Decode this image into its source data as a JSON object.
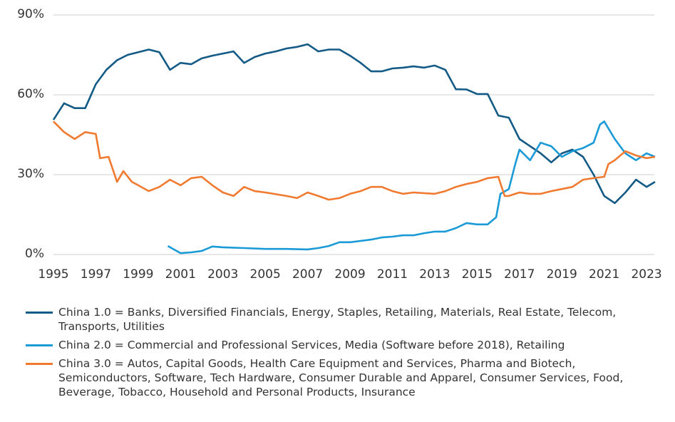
{
  "chart_data": {
    "type": "line",
    "xlim": [
      1995,
      2023.4
    ],
    "xticks": [
      1995,
      1997,
      1999,
      2001,
      2003,
      2005,
      2007,
      2009,
      2011,
      2013,
      2015,
      2017,
      2019,
      2021,
      2023
    ],
    "ylim": [
      0,
      90
    ],
    "yticks": [
      {
        "value": 0,
        "label": "0%"
      },
      {
        "value": 30,
        "label": "30%"
      },
      {
        "value": 60,
        "label": "60%"
      },
      {
        "value": 90,
        "label": "90%"
      }
    ],
    "grid": true,
    "legend": "bottom",
    "series": [
      {
        "name": "China 1.0 = Banks, Diversified Financials, Energy, Staples, Retailing, Materials, Real Estate, Telecom, Transports, Utilities",
        "color": "#135a86",
        "x": [
          1995,
          1995.5,
          1996,
          1996.5,
          1997,
          1997.5,
          1998,
          1998.5,
          1999,
          1999.5,
          2000,
          2000.5,
          2001,
          2001.5,
          2002,
          2002.5,
          2003,
          2003.5,
          2004,
          2004.5,
          2005,
          2005.5,
          2006,
          2006.5,
          2007,
          2007.5,
          2008,
          2008.5,
          2009,
          2009.5,
          2010,
          2010.5,
          2011,
          2011.5,
          2012,
          2012.5,
          2013,
          2013.5,
          2014,
          2014.5,
          2015,
          2015.5,
          2016,
          2016.5,
          2017,
          2017.5,
          2018,
          2018.5,
          2019,
          2019.5,
          2020,
          2020.5,
          2021,
          2021.5,
          2022,
          2022.5,
          2023,
          2023.4
        ],
        "values": [
          50.6,
          56.8,
          55,
          55,
          64,
          69.4,
          73,
          75,
          76,
          77,
          76,
          69.4,
          72,
          71.5,
          73.7,
          74.7,
          75.5,
          76.3,
          72,
          74.2,
          75.5,
          76.3,
          77.4,
          78,
          79,
          76.3,
          77,
          77,
          74.7,
          72,
          68.8,
          68.8,
          69.9,
          70.2,
          70.7,
          70.2,
          71,
          69.4,
          62.1,
          62,
          60.3,
          60.3,
          52.2,
          51.4,
          43.4,
          40.7,
          38,
          34.6,
          38,
          39.4,
          36.7,
          30,
          22,
          19.3,
          23.3,
          28.1,
          25.4,
          27.3
        ]
      },
      {
        "name": "China 2.0 = Commercial and Professional Services, Media (Software before 2018), Retailing",
        "color": "#1a9ad6",
        "x": [
          2000.4,
          2001,
          2001.5,
          2002,
          2002.5,
          2003,
          2004,
          2005,
          2006,
          2007,
          2007.5,
          2008,
          2008.5,
          2009,
          2009.5,
          2010,
          2010.5,
          2011,
          2011.5,
          2012,
          2012.5,
          2013,
          2013.5,
          2014,
          2014.5,
          2015,
          2015.5,
          2015.9,
          2016.1,
          2016.5,
          2016.8,
          2017,
          2017.5,
          2018,
          2018.5,
          2019,
          2019.5,
          2020,
          2020.5,
          2020.8,
          2021,
          2021.5,
          2022,
          2022.5,
          2023,
          2023.4
        ],
        "values": [
          3.2,
          0.5,
          0.8,
          1.3,
          3,
          2.7,
          2.4,
          2.1,
          2.1,
          1.9,
          2.4,
          3.2,
          4.6,
          4.6,
          5.1,
          5.6,
          6.4,
          6.7,
          7.2,
          7.2,
          8,
          8.6,
          8.6,
          9.9,
          11.8,
          11.3,
          11.3,
          14,
          22.8,
          24.6,
          34,
          39.4,
          35.4,
          42,
          40.7,
          36.7,
          38.8,
          40,
          42,
          48.8,
          50,
          43.4,
          38,
          35.4,
          38,
          36.7
        ]
      },
      {
        "name": "China 3.0 = Autos, Capital Goods, Health Care Equipment and Services, Pharma and Biotech, Semiconductors, Software, Tech Hardware, Consumer Durable and Apparel, Consumer Services, Food, Beverage, Tobacco, Household and Personal Products, Insurance",
        "color": "#f07a30",
        "x": [
          1995,
          1995.5,
          1996,
          1996.5,
          1997,
          1997.2,
          1997.6,
          1998,
          1998.3,
          1998.7,
          1999,
          1999.5,
          2000,
          2000.5,
          2001,
          2001.5,
          2002,
          2002.5,
          2003,
          2003.5,
          2004,
          2004.5,
          2005,
          2006,
          2006.5,
          2007,
          2007.5,
          2008,
          2008.5,
          2009,
          2009.5,
          2010,
          2010.5,
          2011,
          2011.5,
          2012,
          2013,
          2013.5,
          2014,
          2014.5,
          2015,
          2015.5,
          2016,
          2016.3,
          2016.5,
          2017,
          2017.5,
          2018,
          2018.5,
          2019,
          2019.5,
          2020,
          2020.5,
          2021,
          2021.2,
          2021.5,
          2022,
          2022.5,
          2023,
          2023.4
        ],
        "values": [
          50,
          46,
          43.4,
          46,
          45.3,
          36.2,
          36.7,
          27.3,
          31.3,
          27.3,
          26,
          23.8,
          25.4,
          28.1,
          26,
          28.7,
          29.2,
          26,
          23.3,
          22,
          25.4,
          23.8,
          23.3,
          22,
          21.2,
          23.3,
          22,
          20.6,
          21.2,
          22.8,
          23.8,
          25.4,
          25.4,
          23.8,
          22.8,
          23.3,
          22.8,
          23.8,
          25.4,
          26.5,
          27.3,
          28.7,
          29.2,
          22,
          22,
          23.3,
          22.8,
          22.8,
          23.8,
          24.6,
          25.4,
          28.1,
          28.7,
          29.2,
          34,
          35.4,
          38.8,
          37.2,
          36.2,
          36.7
        ]
      }
    ]
  }
}
